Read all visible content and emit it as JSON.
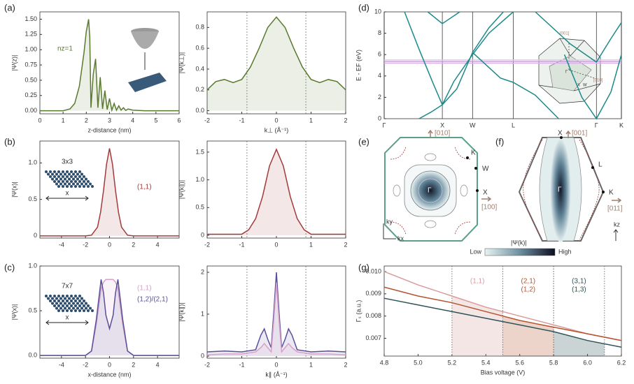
{
  "panel_labels": [
    "(a)",
    "(b)",
    "(c)",
    "(d)",
    "(e)",
    "(f)",
    "(g)"
  ],
  "chart_data": [
    {
      "type": "line",
      "xlabel": "z-distance (nm)",
      "ylabel": "|Ψ(z)|",
      "xlim": [
        0,
        6
      ],
      "ylim": [
        -0.05,
        1.62
      ],
      "xticks": [
        0,
        1,
        2,
        3,
        4,
        5,
        6
      ],
      "yticks": [
        {
          "value": 0,
          "label": "0.00"
        },
        {
          "value": 0.25,
          "label": "0.25"
        },
        {
          "value": 0.5,
          "label": "0.50"
        },
        {
          "value": 0.75,
          "label": "0.75"
        },
        {
          "value": 1,
          "label": "1.00"
        },
        {
          "value": 1.25,
          "label": "1.25"
        },
        {
          "value": 1.5,
          "label": "1.50"
        }
      ],
      "x": [
        0,
        1,
        1.3,
        1.5,
        1.7,
        1.9,
        2.0,
        2.1,
        2.15,
        2.2,
        2.3,
        2.4,
        2.5,
        2.6,
        2.7,
        2.8,
        2.9,
        3.0,
        3.1,
        3.2,
        3.3,
        3.4,
        3.5,
        3.6,
        3.7,
        3.8,
        4.0,
        4.5,
        6
      ],
      "series": [
        {
          "name": "nz=1",
          "color": "#5a7a2e",
          "values": [
            0,
            0,
            0.03,
            0.12,
            0.4,
            0.95,
            1.3,
            1.5,
            1.2,
            0.05,
            0.6,
            0.85,
            0.05,
            0.55,
            0.03,
            0.33,
            0.02,
            0.2,
            0.01,
            0.12,
            0.01,
            0.08,
            0.01,
            0.05,
            0.005,
            0.03,
            0.01,
            0,
            0
          ]
        }
      ],
      "fill": true,
      "legend": true
    },
    {
      "type": "line",
      "xlabel": "k⊥ (Å⁻¹)",
      "ylabel": "|Ψ(k⊥)|",
      "xlim": [
        -2,
        2
      ],
      "ylim": [
        -0.03,
        0.95
      ],
      "xticks": [
        -2,
        -1,
        0,
        1,
        2
      ],
      "yticks": [
        {
          "value": 0,
          "label": "0.0"
        },
        {
          "value": 0.2,
          "label": "0.2"
        },
        {
          "value": 0.4,
          "label": "0.4"
        },
        {
          "value": 0.6,
          "label": "0.6"
        },
        {
          "value": 0.8,
          "label": "0.8"
        }
      ],
      "x": [
        -2,
        -1.75,
        -1.5,
        -1.25,
        -1,
        -0.75,
        -0.5,
        -0.25,
        0,
        0.25,
        0.5,
        0.75,
        1,
        1.25,
        1.5,
        1.75,
        2
      ],
      "series": [
        {
          "color": "#5a7a2e",
          "values": [
            0.2,
            0.28,
            0.3,
            0.27,
            0.3,
            0.42,
            0.6,
            0.8,
            0.9,
            0.8,
            0.6,
            0.42,
            0.3,
            0.27,
            0.3,
            0.28,
            0.2
          ]
        }
      ],
      "fill": true,
      "vlines": [
        -0.85,
        0.85
      ]
    },
    {
      "type": "line",
      "ylabel": "|Ψ(x)|",
      "xlim": [
        -5.8,
        5.8
      ],
      "ylim": [
        -0.03,
        1.3
      ],
      "xticks": [
        -4,
        -2,
        0,
        2,
        4
      ],
      "yticks": [
        0,
        0.5,
        {
          "value": 1,
          "label": "1.0"
        }
      ],
      "x": [
        -5.8,
        -2,
        -1.5,
        -1,
        -0.75,
        -0.5,
        -0.25,
        0,
        0.25,
        0.5,
        0.75,
        1,
        1.5,
        2,
        5.8
      ],
      "series": [
        {
          "name": "(1,1)",
          "color": "#a33a3a",
          "values": [
            0,
            0,
            0.01,
            0.12,
            0.32,
            0.62,
            0.98,
            1.2,
            0.98,
            0.62,
            0.32,
            0.12,
            0.01,
            0,
            0
          ]
        }
      ],
      "fill": true,
      "legend": true,
      "inset": {
        "label": "3x3",
        "axis": "x"
      }
    },
    {
      "type": "line",
      "ylabel": "|Ψ(k∥)|",
      "xlim": [
        -2,
        2
      ],
      "ylim": [
        -0.05,
        1.7
      ],
      "xticks": [
        -2,
        -1,
        0,
        1,
        2
      ],
      "yticks": [
        0,
        0.5,
        {
          "value": 1,
          "label": "1.0"
        },
        1.5
      ],
      "x": [
        -2,
        -1,
        -0.8,
        -0.6,
        -0.4,
        -0.2,
        0,
        0.2,
        0.4,
        0.6,
        0.8,
        1,
        2
      ],
      "series": [
        {
          "color": "#a33a3a",
          "values": [
            0.02,
            0.02,
            0.1,
            0.3,
            0.7,
            1.25,
            1.55,
            1.25,
            0.7,
            0.3,
            0.1,
            0.02,
            0.02
          ]
        }
      ],
      "fill": true,
      "vlines": [
        -0.85,
        0.85
      ]
    },
    {
      "type": "line",
      "xlabel": "x-distance (nm)",
      "ylabel": "|Ψ(x)|",
      "xlim": [
        -5.8,
        5.8
      ],
      "ylim": [
        -0.03,
        1.0
      ],
      "xticks": [
        -4,
        -2,
        0,
        2,
        4
      ],
      "yticks": [
        {
          "value": 0,
          "label": "0.0"
        },
        0.5,
        {
          "value": 1,
          "label": "1.0"
        }
      ],
      "x": [
        -5.8,
        -2,
        -1.5,
        -1.1,
        -0.7,
        -0.5,
        -0.3,
        0,
        0.3,
        0.5,
        0.7,
        1.1,
        1.5,
        2,
        5.8
      ],
      "series": [
        {
          "name": "(1,1)",
          "color": "#d9a0c8",
          "values": [
            0,
            0,
            0.05,
            0.35,
            0.75,
            0.82,
            0.85,
            0.85,
            0.85,
            0.82,
            0.75,
            0.35,
            0.05,
            0,
            0
          ]
        },
        {
          "name": "(1,2)/(2,1)",
          "color": "#5a4f9a",
          "values": [
            0,
            0,
            0.05,
            0.4,
            0.85,
            0.7,
            0.45,
            0.3,
            0.45,
            0.7,
            0.85,
            0.4,
            0.05,
            0,
            0
          ]
        }
      ],
      "fill": true,
      "legend": true,
      "inset": {
        "label": "7x7",
        "axis": "x"
      }
    },
    {
      "type": "line",
      "xlabel": "k∥ (Å⁻¹)",
      "ylabel": "|Ψ(k∥)|",
      "xlim": [
        -2,
        2
      ],
      "ylim": [
        -0.05,
        2.15
      ],
      "xticks": [
        -2,
        -1,
        0,
        1,
        2
      ],
      "yticks": [
        0,
        1,
        2
      ],
      "x": [
        -2,
        -1.5,
        -1,
        -0.6,
        -0.45,
        -0.35,
        -0.25,
        -0.15,
        -0.08,
        0,
        0.08,
        0.15,
        0.25,
        0.35,
        0.45,
        0.6,
        1,
        1.5,
        2
      ],
      "series": [
        {
          "color": "#5a4f9a",
          "values": [
            0.1,
            0.12,
            0.1,
            0.15,
            0.5,
            0.65,
            0.4,
            0.2,
            1.0,
            2.0,
            1.0,
            0.2,
            0.4,
            0.65,
            0.5,
            0.15,
            0.1,
            0.12,
            0.1
          ]
        },
        {
          "color": "#d9a0c8",
          "values": [
            0.03,
            0.05,
            0.05,
            0.1,
            0.2,
            0.3,
            0.2,
            0.1,
            0.8,
            1.75,
            0.8,
            0.1,
            0.2,
            0.3,
            0.2,
            0.1,
            0.05,
            0.05,
            0.03
          ]
        }
      ],
      "fill": true,
      "vlines": [
        -0.85,
        0.85
      ]
    },
    {
      "type": "line",
      "ylabel": "E - EF (eV)",
      "xlim": [
        0,
        4.08
      ],
      "ylim": [
        0,
        10
      ],
      "xticks": [
        {
          "value": 0,
          "label": "Γ"
        },
        {
          "value": 1,
          "label": "X"
        },
        {
          "value": 1.52,
          "label": "W"
        },
        {
          "value": 2.22,
          "label": "L"
        },
        {
          "value": 3.65,
          "label": "Γ"
        },
        {
          "value": 4.08,
          "label": "K"
        }
      ],
      "yticks": [
        0,
        2,
        4,
        6,
        8,
        10
      ],
      "xgrid": true,
      "series": [
        {
          "color": "#d7b4e4",
          "x": [
            0,
            4.08
          ],
          "values": [
            5.2,
            5.2
          ]
        },
        {
          "color": "#c9a0dc",
          "x": [
            0,
            4.08
          ],
          "values": [
            5.35,
            5.35
          ]
        },
        {
          "color": "#e3c6ee",
          "x": [
            0,
            4.08
          ],
          "values": [
            5.5,
            5.5
          ]
        },
        {
          "color": "#1e8a8a",
          "x": [
            0.35,
            0.6,
            0.85,
            1.0,
            1.25,
            1.52,
            1.8,
            2.0,
            2.22,
            2.6,
            3.0
          ],
          "values": [
            10,
            6.5,
            3.2,
            1.3,
            2.8,
            6.2,
            4.8,
            3.8,
            3.4,
            2.2,
            0
          ]
        },
        {
          "color": "#1e8a8a",
          "x": [
            0.6,
            0.8,
            1.0,
            1.2,
            1.52,
            1.8,
            2.22
          ],
          "values": [
            0,
            0.6,
            1.3,
            3.5,
            6,
            8,
            10
          ]
        },
        {
          "color": "#1e8a8a",
          "x": [
            0.75,
            1.0,
            1.3
          ],
          "values": [
            10,
            8.9,
            10
          ]
        },
        {
          "color": "#1e8a8a",
          "x": [
            2.6,
            3.2,
            3.65,
            3.9,
            4.08
          ],
          "values": [
            10,
            7,
            5.3,
            7.5,
            9
          ]
        },
        {
          "color": "#1e8a8a",
          "x": [
            3.1,
            3.4,
            3.65,
            3.9,
            4.08
          ],
          "values": [
            6,
            2,
            0,
            2.5,
            6
          ]
        },
        {
          "color": "#1e8a8a",
          "x": [
            1.52,
            1.8,
            2.05
          ],
          "values": [
            6.2,
            8.5,
            10
          ]
        }
      ]
    },
    {
      "type": "line",
      "xlabel": "Bias voltage (V)",
      "ylabel": "Γₛ (a.u.)",
      "xlim": [
        4.8,
        6.2
      ],
      "ylim": [
        0.0062,
        0.01025
      ],
      "xticks": [
        4.8,
        {
          "value": 5,
          "label": "5.0"
        },
        5.2,
        5.4,
        5.6,
        5.8,
        {
          "value": 6,
          "label": "6.0"
        },
        6.2
      ],
      "yticks": [
        0.007,
        0.008,
        0.009,
        {
          "value": 0.01,
          "label": "0.010"
        }
      ],
      "x": [
        4.8,
        5.0,
        5.2,
        5.4,
        5.6,
        5.8,
        6.0,
        6.2
      ],
      "series": [
        {
          "color": "#d99a9a",
          "values": [
            0.01,
            0.0094,
            0.0089,
            0.0084,
            0.008,
            0.0076,
            0.0072,
            0.0069
          ]
        },
        {
          "color": "#b5532e",
          "values": [
            0.0093,
            0.0089,
            0.0086,
            0.0082,
            0.0078,
            0.0075,
            0.0072,
            0.0069
          ]
        },
        {
          "color": "#2f5357",
          "values": [
            0.0088,
            0.0085,
            0.0082,
            0.0079,
            0.0076,
            0.0073,
            0.0069,
            0.0066
          ]
        }
      ],
      "regions": [
        {
          "x0": 5.2,
          "x1": 5.5,
          "color": "#d99a9a",
          "labels": [
            "(1,1)"
          ]
        },
        {
          "x0": 5.5,
          "x1": 5.8,
          "color": "#b5532e",
          "labels": [
            "(2,1)",
            "(1,2)"
          ]
        },
        {
          "x0": 5.8,
          "x1": 6.1,
          "color": "#2f5357",
          "labels": [
            "(3,1)",
            "(1,3)"
          ]
        }
      ]
    }
  ],
  "diagrams": {
    "d_inset": [
      "[001]",
      "[010]",
      "X",
      "W",
      "Γ"
    ],
    "e": [
      "[010]",
      "K",
      "W",
      "X",
      "[100]",
      "Γ",
      "ky",
      "kx"
    ],
    "f": [
      "X",
      "[001]",
      "L",
      "K",
      "[011]",
      "Γ",
      "kz"
    ],
    "colorbar": {
      "title": "|Ψ(k)|",
      "low": "Low",
      "high": "High"
    }
  }
}
